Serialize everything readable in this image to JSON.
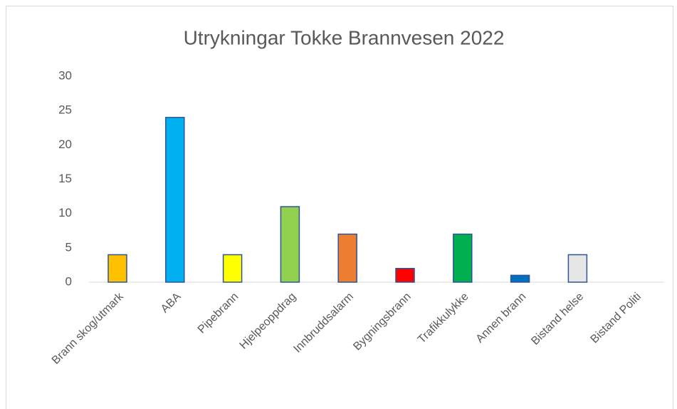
{
  "chart_data": {
    "type": "bar",
    "title": "Utrykningar Tokke Brannvesen 2022",
    "categories": [
      "Brann skog/utmark",
      "ABA",
      "Pipebrann",
      "Hjelpeoppdrag",
      "Innbruddsalarm",
      "Bygningsbrann",
      "Trafikkulykke",
      "Annen brann",
      "Bistand helse",
      "Bistand Politi"
    ],
    "values": [
      4,
      24,
      4,
      11,
      7,
      2,
      7,
      1,
      4,
      0
    ],
    "colors": [
      "#FFC000",
      "#00B0F0",
      "#FFFF00",
      "#92D050",
      "#ED7D31",
      "#FF0000",
      "#00B050",
      "#0070C0",
      "#E7E6E6",
      "#E7E6E6"
    ],
    "ylim": [
      0,
      30
    ],
    "yticks": [
      0,
      5,
      10,
      15,
      20,
      25,
      30
    ],
    "grid": false
  }
}
